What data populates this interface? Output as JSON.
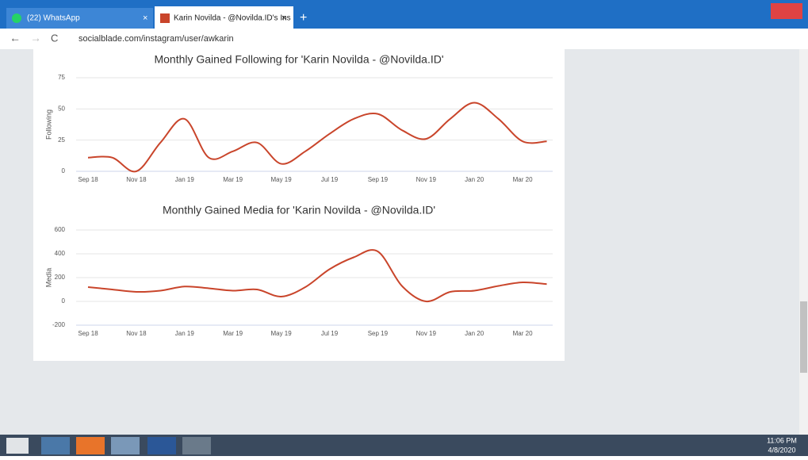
{
  "browser": {
    "tabs": [
      "(22) WhatsApp",
      "Karin Novilda - @Novilda.ID's Ins"
    ],
    "url": "socialblade.com/instagram/user/awkarin"
  },
  "chart_data": [
    {
      "type": "line",
      "title": "Monthly Gained Following for 'Karin Novilda - @Novilda.ID'",
      "y_label": "Following",
      "categories": [
        "Sep 18",
        null,
        "Nov 18",
        null,
        "Jan 19",
        null,
        "Mar 19",
        null,
        "May 19",
        null,
        "Jul 19",
        null,
        "Sep 19",
        null,
        "Nov 19",
        null,
        "Jan 20",
        null,
        "Mar 20",
        null
      ],
      "series": [
        {
          "name": "Following",
          "color": "#c9452b",
          "values": [
            11,
            11,
            0,
            23,
            42,
            11,
            16,
            23,
            6,
            16,
            30,
            42,
            46,
            33,
            26,
            42,
            55,
            42,
            24,
            24
          ]
        }
      ],
      "ylim": [
        0,
        75
      ],
      "yticks": [
        0,
        25,
        50,
        75
      ],
      "grid": true
    },
    {
      "type": "line",
      "title": "Monthly Gained Media for 'Karin Novilda - @Novilda.ID'",
      "y_label": "Media",
      "categories": [
        "Sep 18",
        null,
        "Nov 18",
        null,
        "Jan 19",
        null,
        "Mar 19",
        null,
        "May 19",
        null,
        "Jul 19",
        null,
        "Sep 19",
        null,
        "Nov 19",
        null,
        "Jan 20",
        null,
        "Mar 20",
        null
      ],
      "series": [
        {
          "name": "Media",
          "color": "#c9452b",
          "values": [
            120,
            100,
            80,
            90,
            125,
            110,
            90,
            100,
            40,
            120,
            270,
            370,
            420,
            130,
            0,
            80,
            90,
            130,
            160,
            145
          ]
        }
      ],
      "ylim": [
        -200,
        600
      ],
      "yticks": [
        -200,
        0,
        200,
        400,
        600
      ],
      "grid": true
    }
  ],
  "taskbar": {
    "time": "11:06 PM",
    "date": "4/8/2020"
  }
}
